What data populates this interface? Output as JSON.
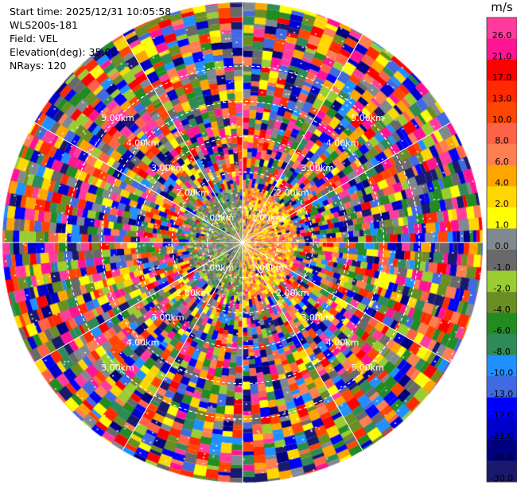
{
  "header": {
    "start_time": "Start time: 2025/12/31 10:05:58",
    "instrument": "WLS200s-181",
    "field": "Field: VEL",
    "elevation": "Elevation(deg): 35.00",
    "nrays": "NRays: 120"
  },
  "colorbar": {
    "unit": "m/s",
    "labels": [
      "26.0",
      "21.0",
      "17.0",
      "13.0",
      "10.0",
      "8.0",
      "6.0",
      "4.0",
      "2.0",
      "1.0",
      "0.0",
      "-1.0",
      "-2.0",
      "-4.0",
      "-6.0",
      "-8.0",
      "-10.0",
      "-13.0",
      "-17.0",
      "-21.0",
      "-26.0",
      "-30.0"
    ],
    "colors": [
      "#ff3c9e",
      "#ff1493",
      "#ff0000",
      "#ff2a00",
      "#ff4500",
      "#ff6347",
      "#ff7f50",
      "#ffa500",
      "#ffd700",
      "#ffff00",
      "#808890",
      "#696969",
      "#9acd32",
      "#6b8e23",
      "#228b22",
      "#2e8b57",
      "#1e90ff",
      "#4169e1",
      "#0000ff",
      "#0000cd",
      "#000080",
      "#191970"
    ]
  },
  "chart_data": {
    "type": "heatmap",
    "projection": "polar-ppi",
    "field": "VEL",
    "nrays": 120,
    "elevation_deg": 35.0,
    "range_rings": [
      {
        "label": "1.00km",
        "km": 1.0
      },
      {
        "label": "2.00km",
        "km": 2.0
      },
      {
        "label": "3.00km",
        "km": 3.0
      },
      {
        "label": "4.00km",
        "km": 4.0
      },
      {
        "label": "5.00km",
        "km": 5.0
      }
    ],
    "max_range_km": 6.8,
    "near_field": {
      "core_radius_km": 1.5,
      "left_half": "green/gray (negative, approaching)",
      "right_half": "orange/yellow (positive, receding)"
    },
    "far_field": "noise across full color scale",
    "radial_spokes_deg": [
      0,
      30,
      60,
      90,
      120,
      150
    ]
  }
}
